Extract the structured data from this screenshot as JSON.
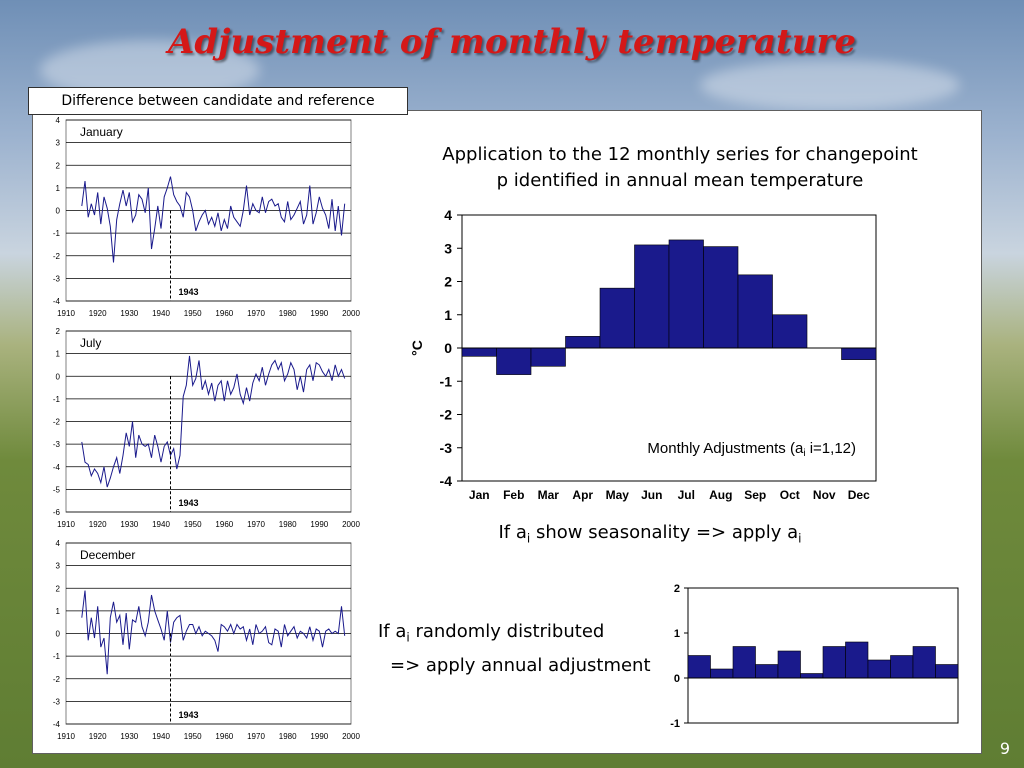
{
  "slide": {
    "title": "Adjustment of monthly temperature",
    "diff_label": "Difference between candidate and reference",
    "application_text_line1": "Application to the 12 monthly series for changepoint",
    "application_text_line2": "p identified in annual mean temperature",
    "seasonality_prefix": "If a",
    "seasonality_sub": "i",
    "seasonality_mid": " show seasonality => apply a",
    "random_prefix": "If a",
    "random_sub": "i",
    "random_mid": " randomly distributed",
    "random_line2": "=> apply annual adjustment",
    "page_number": "9"
  },
  "chart_data": [
    {
      "type": "line",
      "label": "January",
      "x_ticks": [
        "1910",
        "1920",
        "1930",
        "1940",
        "1950",
        "1960",
        "1970",
        "1980",
        "1990",
        "2000"
      ],
      "xlim": [
        1910,
        2000
      ],
      "ylim": [
        -4,
        4
      ],
      "y_ticks": [
        "4",
        "3",
        "2",
        "1",
        "0",
        "-1",
        "-2",
        "-3",
        "-4"
      ],
      "changepoint": 1943,
      "changepoint_label": "1943",
      "series": [
        {
          "x_start": 1915,
          "x_end": 1998,
          "values": [
            0.2,
            1.3,
            -0.3,
            0.3,
            -0.2,
            0.8,
            -0.6,
            0.6,
            0.1,
            -0.7,
            -2.3,
            -0.4,
            0.3,
            0.9,
            0.2,
            0.8,
            -0.5,
            -0.2,
            0.7,
            0.5,
            -0.1,
            1.0,
            -1.7,
            -0.8,
            0.2,
            -0.8,
            0.6,
            1.0,
            1.5,
            0.7,
            0.4,
            0.2,
            -0.3,
            0.8,
            0.6,
            0.0,
            -0.9,
            -0.5,
            -0.2,
            0.0,
            -0.6,
            -0.3,
            -0.7,
            -0.1,
            -0.9,
            -0.4,
            -0.8,
            0.2,
            -0.3,
            -0.5,
            -0.7,
            0.0,
            1.1,
            -0.2,
            0.3,
            0.0,
            -0.1,
            0.6,
            -0.1,
            0.4,
            0.5,
            0.2,
            0.3,
            -0.3,
            -0.5,
            0.4,
            -0.4,
            -0.2,
            0.1,
            0.4,
            -0.6,
            -0.2,
            1.1,
            -0.6,
            -0.1,
            0.6,
            0.1,
            -0.2,
            -0.8,
            0.5,
            -0.9,
            0.2,
            -1.1,
            0.3
          ]
        }
      ]
    },
    {
      "type": "line",
      "label": "July",
      "x_ticks": [
        "1910",
        "1920",
        "1930",
        "1940",
        "1950",
        "1960",
        "1970",
        "1980",
        "1990",
        "2000"
      ],
      "xlim": [
        1910,
        2000
      ],
      "ylim": [
        -6,
        2
      ],
      "y_ticks": [
        "2",
        "1",
        "0",
        "-1",
        "-2",
        "-3",
        "-4",
        "-5",
        "-6"
      ],
      "changepoint": 1943,
      "changepoint_label": "1943",
      "series": [
        {
          "x_start": 1915,
          "x_end": 1998,
          "values": [
            -2.9,
            -3.8,
            -3.9,
            -4.4,
            -4.1,
            -4.3,
            -4.7,
            -4.0,
            -4.9,
            -4.5,
            -4.0,
            -3.6,
            -4.3,
            -3.5,
            -2.5,
            -3.1,
            -2.0,
            -3.6,
            -2.6,
            -3.0,
            -3.1,
            -3.0,
            -3.6,
            -2.6,
            -3.1,
            -3.8,
            -3.1,
            -2.9,
            -3.5,
            -3.2,
            -4.1,
            -3.5,
            -0.9,
            -0.4,
            0.9,
            -0.4,
            -0.1,
            0.7,
            -0.6,
            -0.2,
            -0.8,
            -0.3,
            -1.1,
            -0.4,
            -0.2,
            -1.1,
            -0.2,
            -0.8,
            -0.5,
            0.1,
            -0.8,
            -1.2,
            -0.5,
            -1.1,
            -0.3,
            0.1,
            -0.2,
            0.4,
            -0.4,
            0.1,
            0.5,
            0.7,
            0.3,
            0.6,
            -0.2,
            0.1,
            0.6,
            0.3,
            -0.6,
            0.0,
            -0.7,
            0.3,
            0.5,
            -0.2,
            0.6,
            0.5,
            0.2,
            0.0,
            0.3,
            -0.2,
            0.5,
            0.0,
            0.3,
            -0.1
          ]
        }
      ]
    },
    {
      "type": "line",
      "label": "December",
      "x_ticks": [
        "1910",
        "1920",
        "1930",
        "1940",
        "1950",
        "1960",
        "1970",
        "1980",
        "1990",
        "2000"
      ],
      "xlim": [
        1910,
        2000
      ],
      "ylim": [
        -4,
        4
      ],
      "y_ticks": [
        "4",
        "3",
        "2",
        "1",
        "0",
        "-1",
        "-2",
        "-3",
        "-4"
      ],
      "changepoint": 1943,
      "changepoint_label": "1943",
      "series": [
        {
          "x_start": 1915,
          "x_end": 1998,
          "values": [
            0.7,
            1.9,
            -0.3,
            0.7,
            -0.2,
            1.2,
            -0.6,
            -0.2,
            -1.8,
            0.7,
            1.4,
            0.5,
            0.8,
            -0.5,
            0.9,
            -0.7,
            0.6,
            0.5,
            1.2,
            0.3,
            -0.1,
            0.5,
            1.7,
            1.0,
            0.6,
            0.2,
            -0.3,
            1.0,
            -0.4,
            0.5,
            0.7,
            0.8,
            -0.3,
            0.1,
            0.4,
            0.4,
            0.0,
            0.3,
            -0.1,
            0.1,
            0.0,
            -0.1,
            -0.3,
            -0.8,
            0.4,
            0.3,
            0.1,
            0.4,
            0.0,
            0.4,
            0.2,
            0.3,
            -0.3,
            0.2,
            -0.5,
            0.4,
            0.0,
            0.1,
            0.3,
            -0.4,
            -0.5,
            0.2,
            0.1,
            -0.6,
            0.4,
            -0.1,
            0.1,
            0.3,
            -0.2,
            0.1,
            0.0,
            -0.2,
            0.3,
            -0.3,
            0.2,
            0.1,
            -0.6,
            0.1,
            0.2,
            0.0,
            0.1,
            0.0,
            1.2,
            -0.1
          ]
        }
      ]
    },
    {
      "type": "bar",
      "categories": [
        "Jan",
        "Feb",
        "Mar",
        "Apr",
        "May",
        "Jun",
        "Jul",
        "Aug",
        "Sep",
        "Oct",
        "Nov",
        "Dec"
      ],
      "values": [
        -0.25,
        -0.8,
        -0.55,
        0.35,
        1.8,
        3.1,
        3.25,
        3.05,
        2.2,
        1.0,
        0.0,
        -0.35
      ],
      "ylim": [
        -4,
        4
      ],
      "y_ticks": [
        "4",
        "3",
        "2",
        "1",
        "0",
        "-1",
        "-2",
        "-3",
        "-4"
      ],
      "ylabel": "°C",
      "annotation_prefix": "Monthly Adjustments (a",
      "annotation_sub": "i",
      "annotation_suffix": " i=1,12)",
      "bar_color": "#1a1a8c"
    },
    {
      "type": "bar",
      "values": [
        0.5,
        0.2,
        0.7,
        0.3,
        0.6,
        0.1,
        0.7,
        0.8,
        0.4,
        0.5,
        0.7,
        0.3
      ],
      "ylim": [
        -1,
        2
      ],
      "y_ticks": [
        "2",
        "1",
        "0",
        "-1"
      ],
      "bar_color": "#1a1a8c"
    }
  ]
}
